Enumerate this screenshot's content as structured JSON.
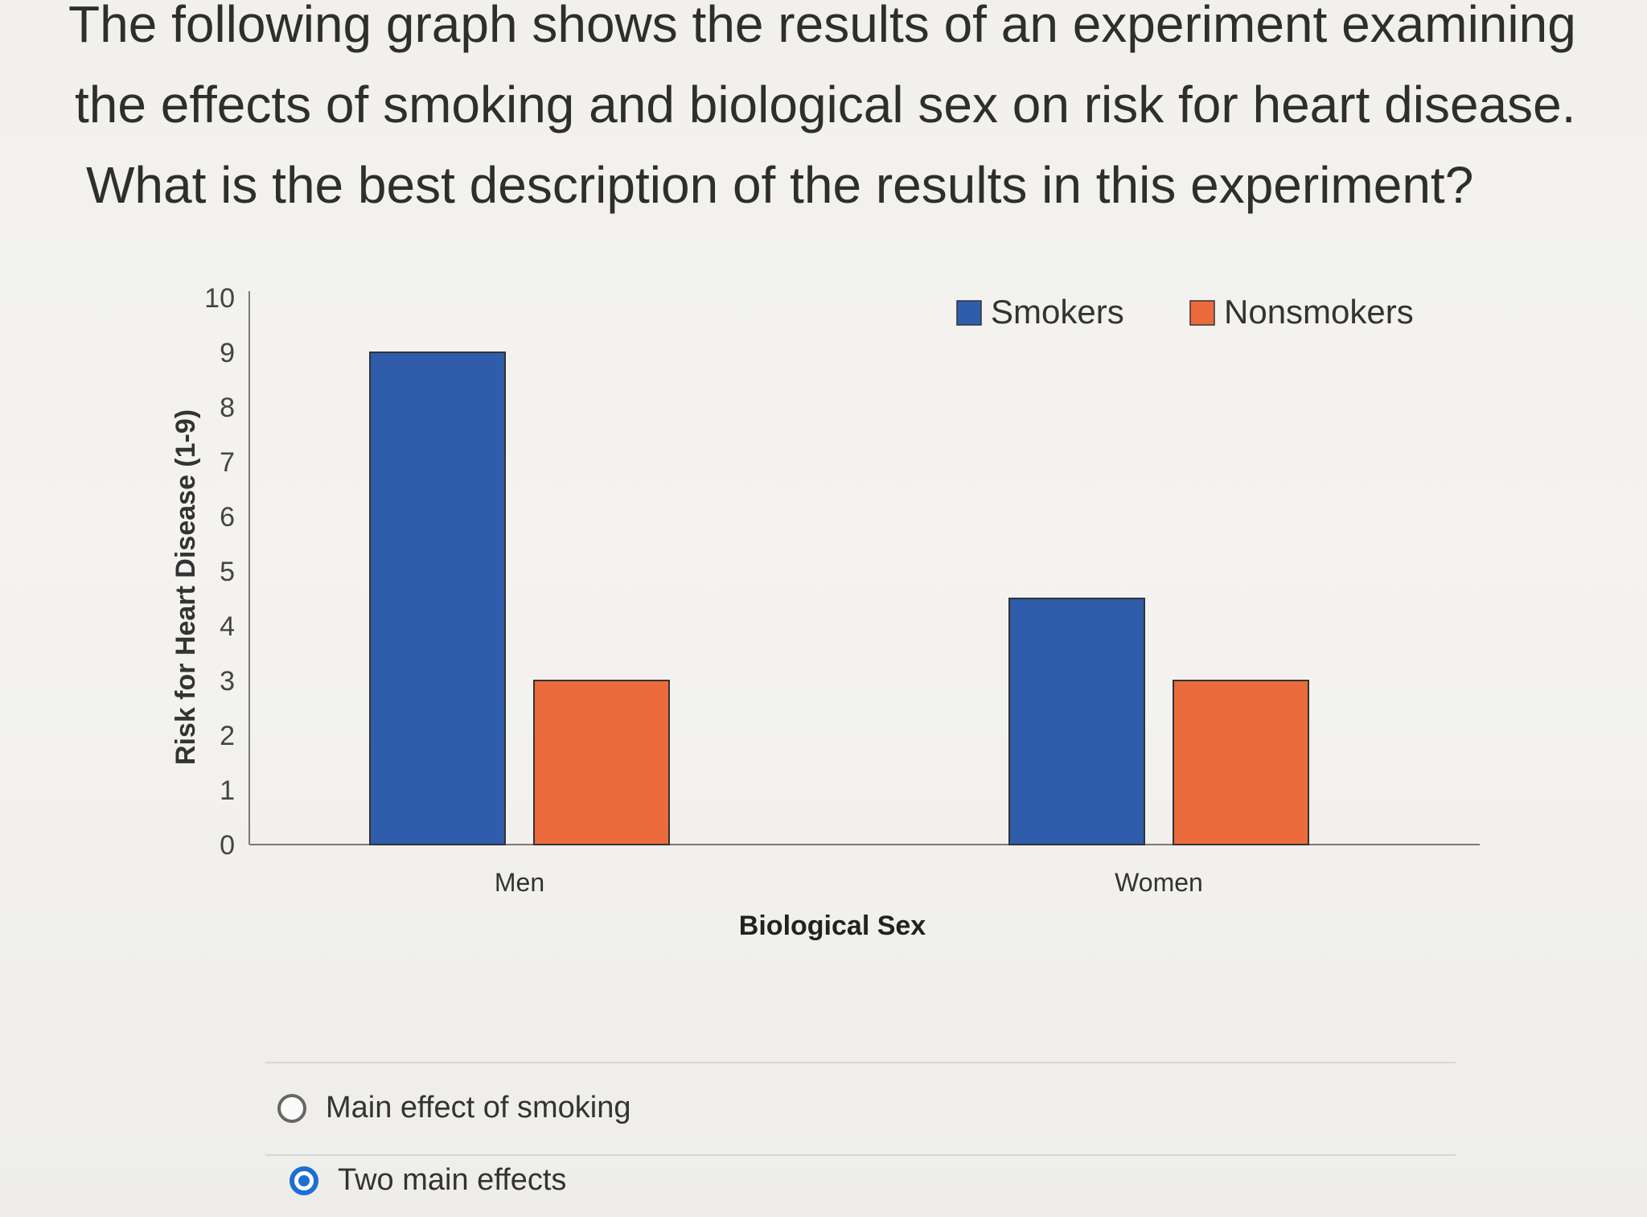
{
  "question": {
    "line1": "The following graph shows the results of an experiment examining",
    "line2": "the effects of smoking and biological sex on risk for heart disease.",
    "line3": "What is the best description of the results in this experiment?"
  },
  "chart_data": {
    "type": "bar",
    "title": "",
    "xlabel": "Biological Sex",
    "ylabel": "Risk for Heart Disease (1-9)",
    "ylim": [
      0,
      10
    ],
    "yticks": [
      "0",
      "1",
      "2",
      "3",
      "4",
      "5",
      "6",
      "7",
      "8",
      "9",
      "10"
    ],
    "categories": [
      "Men",
      "Women"
    ],
    "series": [
      {
        "name": "Smokers",
        "values": [
          9,
          4.5
        ],
        "color": "#2f5dab"
      },
      {
        "name": "Nonsmokers",
        "values": [
          3,
          3
        ],
        "color": "#eb6b3c"
      }
    ],
    "legend_position": "top-right",
    "grid": false
  },
  "answers": [
    {
      "label": "Main effect of smoking",
      "selected": false
    },
    {
      "label": "Two main effects",
      "selected": true
    }
  ]
}
